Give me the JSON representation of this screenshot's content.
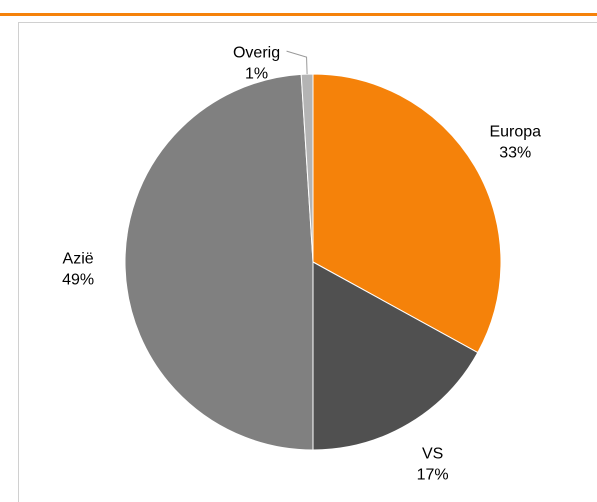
{
  "chart_data": {
    "type": "pie",
    "categories": [
      "Europa",
      "VS",
      "Azië",
      "Overig"
    ],
    "values": [
      33,
      17,
      49,
      1
    ],
    "value_labels": [
      "33%",
      "17%",
      "49%",
      "1%"
    ],
    "colors": [
      "#f5820a",
      "#505050",
      "#808080",
      "#b4b4b4"
    ]
  }
}
